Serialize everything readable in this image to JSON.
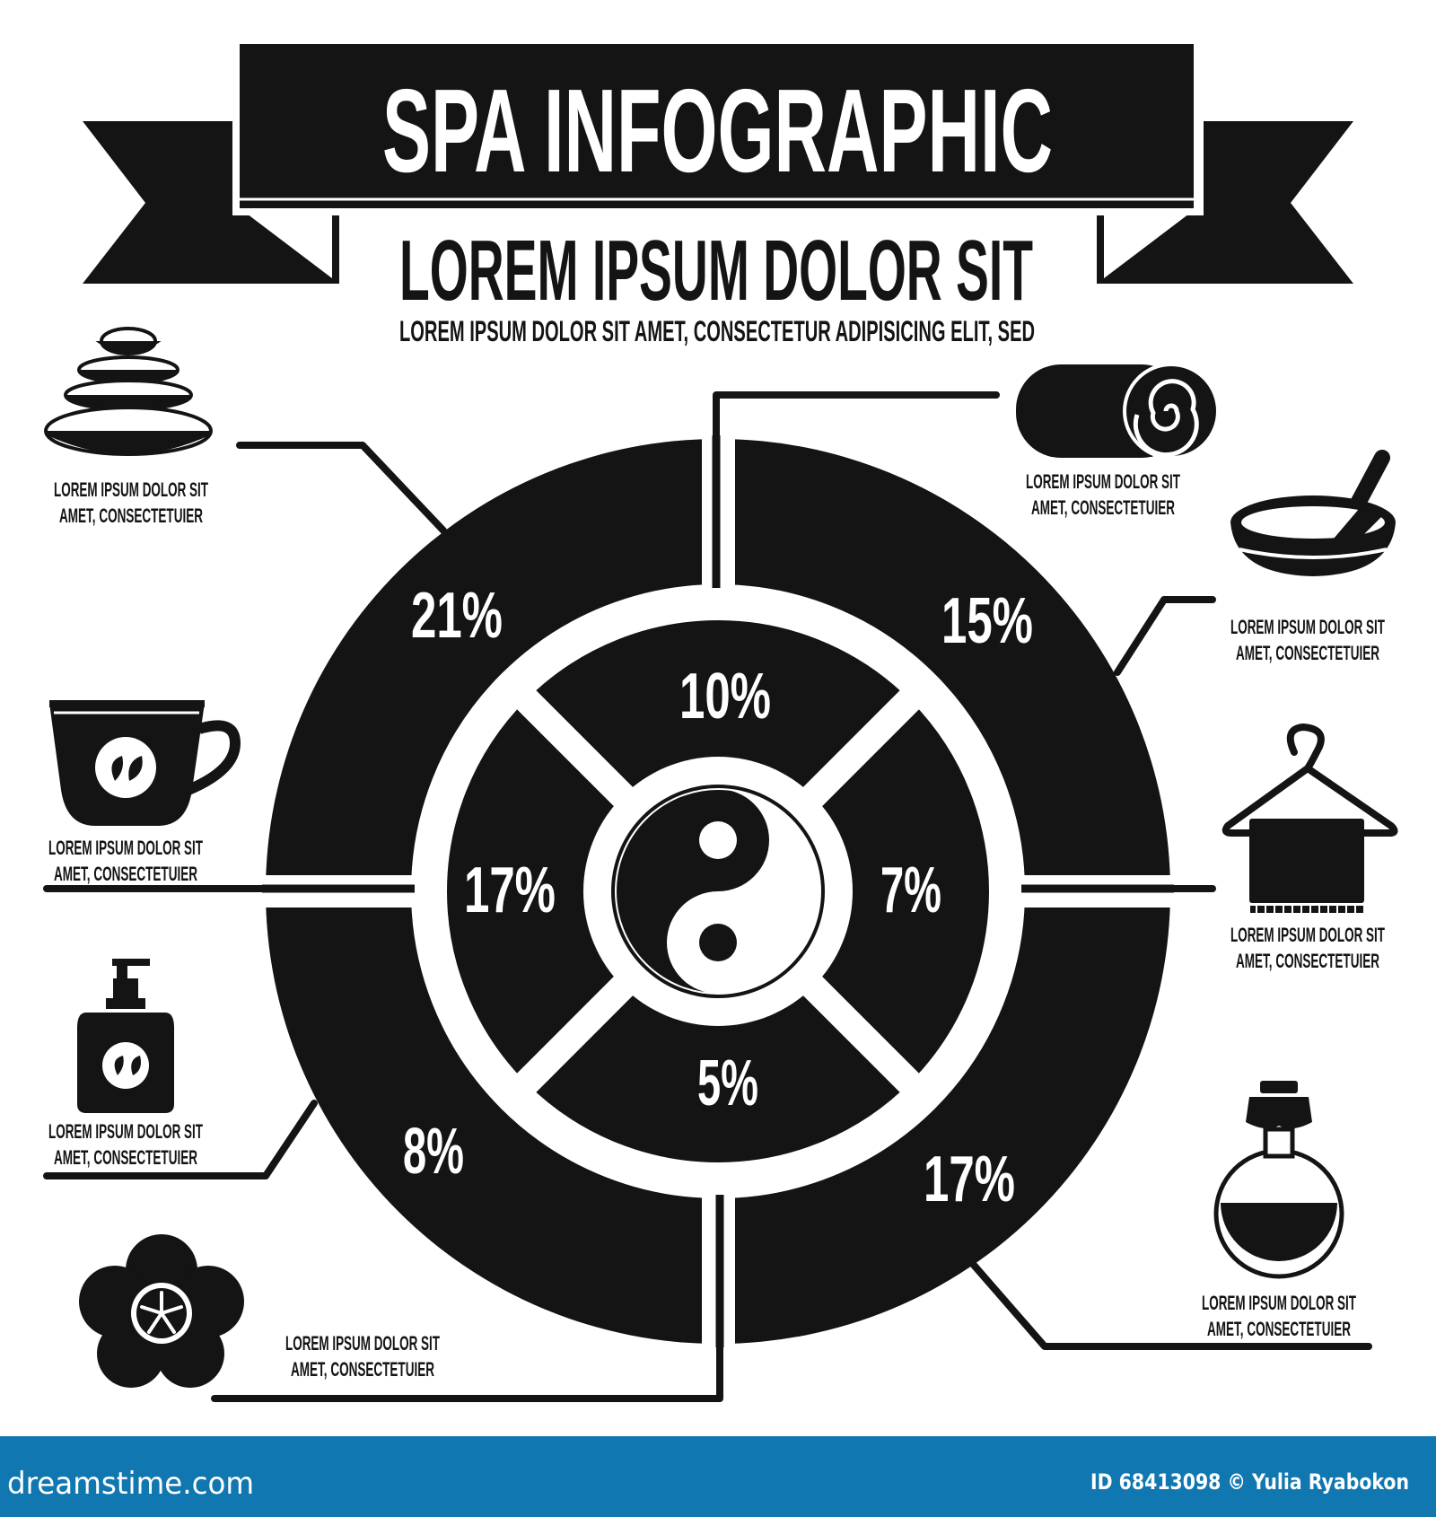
{
  "header": {
    "title": "SPA INFOGRAPHIC",
    "subtitle": "LOREM IPSUM DOLOR SIT",
    "tagline": "LOREM IPSUM DOLOR SIT AMET, CONSECTETUR  ADIPISICING ELIT, SED"
  },
  "chart_data": {
    "type": "pie",
    "title": "",
    "outer_ring": {
      "segments": [
        "top-left",
        "top-right",
        "bottom-right",
        "bottom-left"
      ],
      "values": [
        21,
        15,
        17,
        8
      ],
      "labels": [
        "21%",
        "15%",
        "17%",
        "8%"
      ]
    },
    "inner_ring": {
      "segments": [
        "top",
        "right",
        "bottom",
        "left"
      ],
      "values": [
        10,
        7,
        5,
        17
      ],
      "labels": [
        "10%",
        "7%",
        "5%",
        "17%"
      ]
    },
    "center_icon": "yin-yang-icon",
    "legend": "none"
  },
  "callouts": [
    {
      "icon": "hot-stones-icon",
      "line1": "LOREM IPSUM DOLOR SIT",
      "line2": "AMET, CONSECTETUIER"
    },
    {
      "icon": "rolled-towel-icon",
      "line1": "LOREM IPSUM DOLOR SIT",
      "line2": "AMET, CONSECTETUIER"
    },
    {
      "icon": "mortar-bowl-icon",
      "line1": "LOREM IPSUM DOLOR SIT",
      "line2": "AMET, CONSECTETUIER"
    },
    {
      "icon": "tea-cup-icon",
      "line1": "LOREM IPSUM DOLOR SIT",
      "line2": "AMET, CONSECTETUIER"
    },
    {
      "icon": "towel-hanger-icon",
      "line1": "LOREM IPSUM DOLOR SIT",
      "line2": "AMET, CONSECTETUIER"
    },
    {
      "icon": "soap-bottle-icon",
      "line1": "LOREM IPSUM DOLOR SIT",
      "line2": "AMET, CONSECTETUIER"
    },
    {
      "icon": "flower-icon",
      "line1": "LOREM IPSUM DOLOR SIT",
      "line2": "AMET, CONSECTETUIER"
    },
    {
      "icon": "oil-jar-icon",
      "line1": "LOREM IPSUM DOLOR SIT",
      "line2": "AMET, CONSECTETUIER"
    }
  ],
  "footer": {
    "brand": "dreamstime.com",
    "credit": "ID 68413098 © Yulia Ryabokon"
  },
  "colors": {
    "ink": "#141414",
    "background": "#ffffff",
    "footer_bar": "#1077b0"
  }
}
